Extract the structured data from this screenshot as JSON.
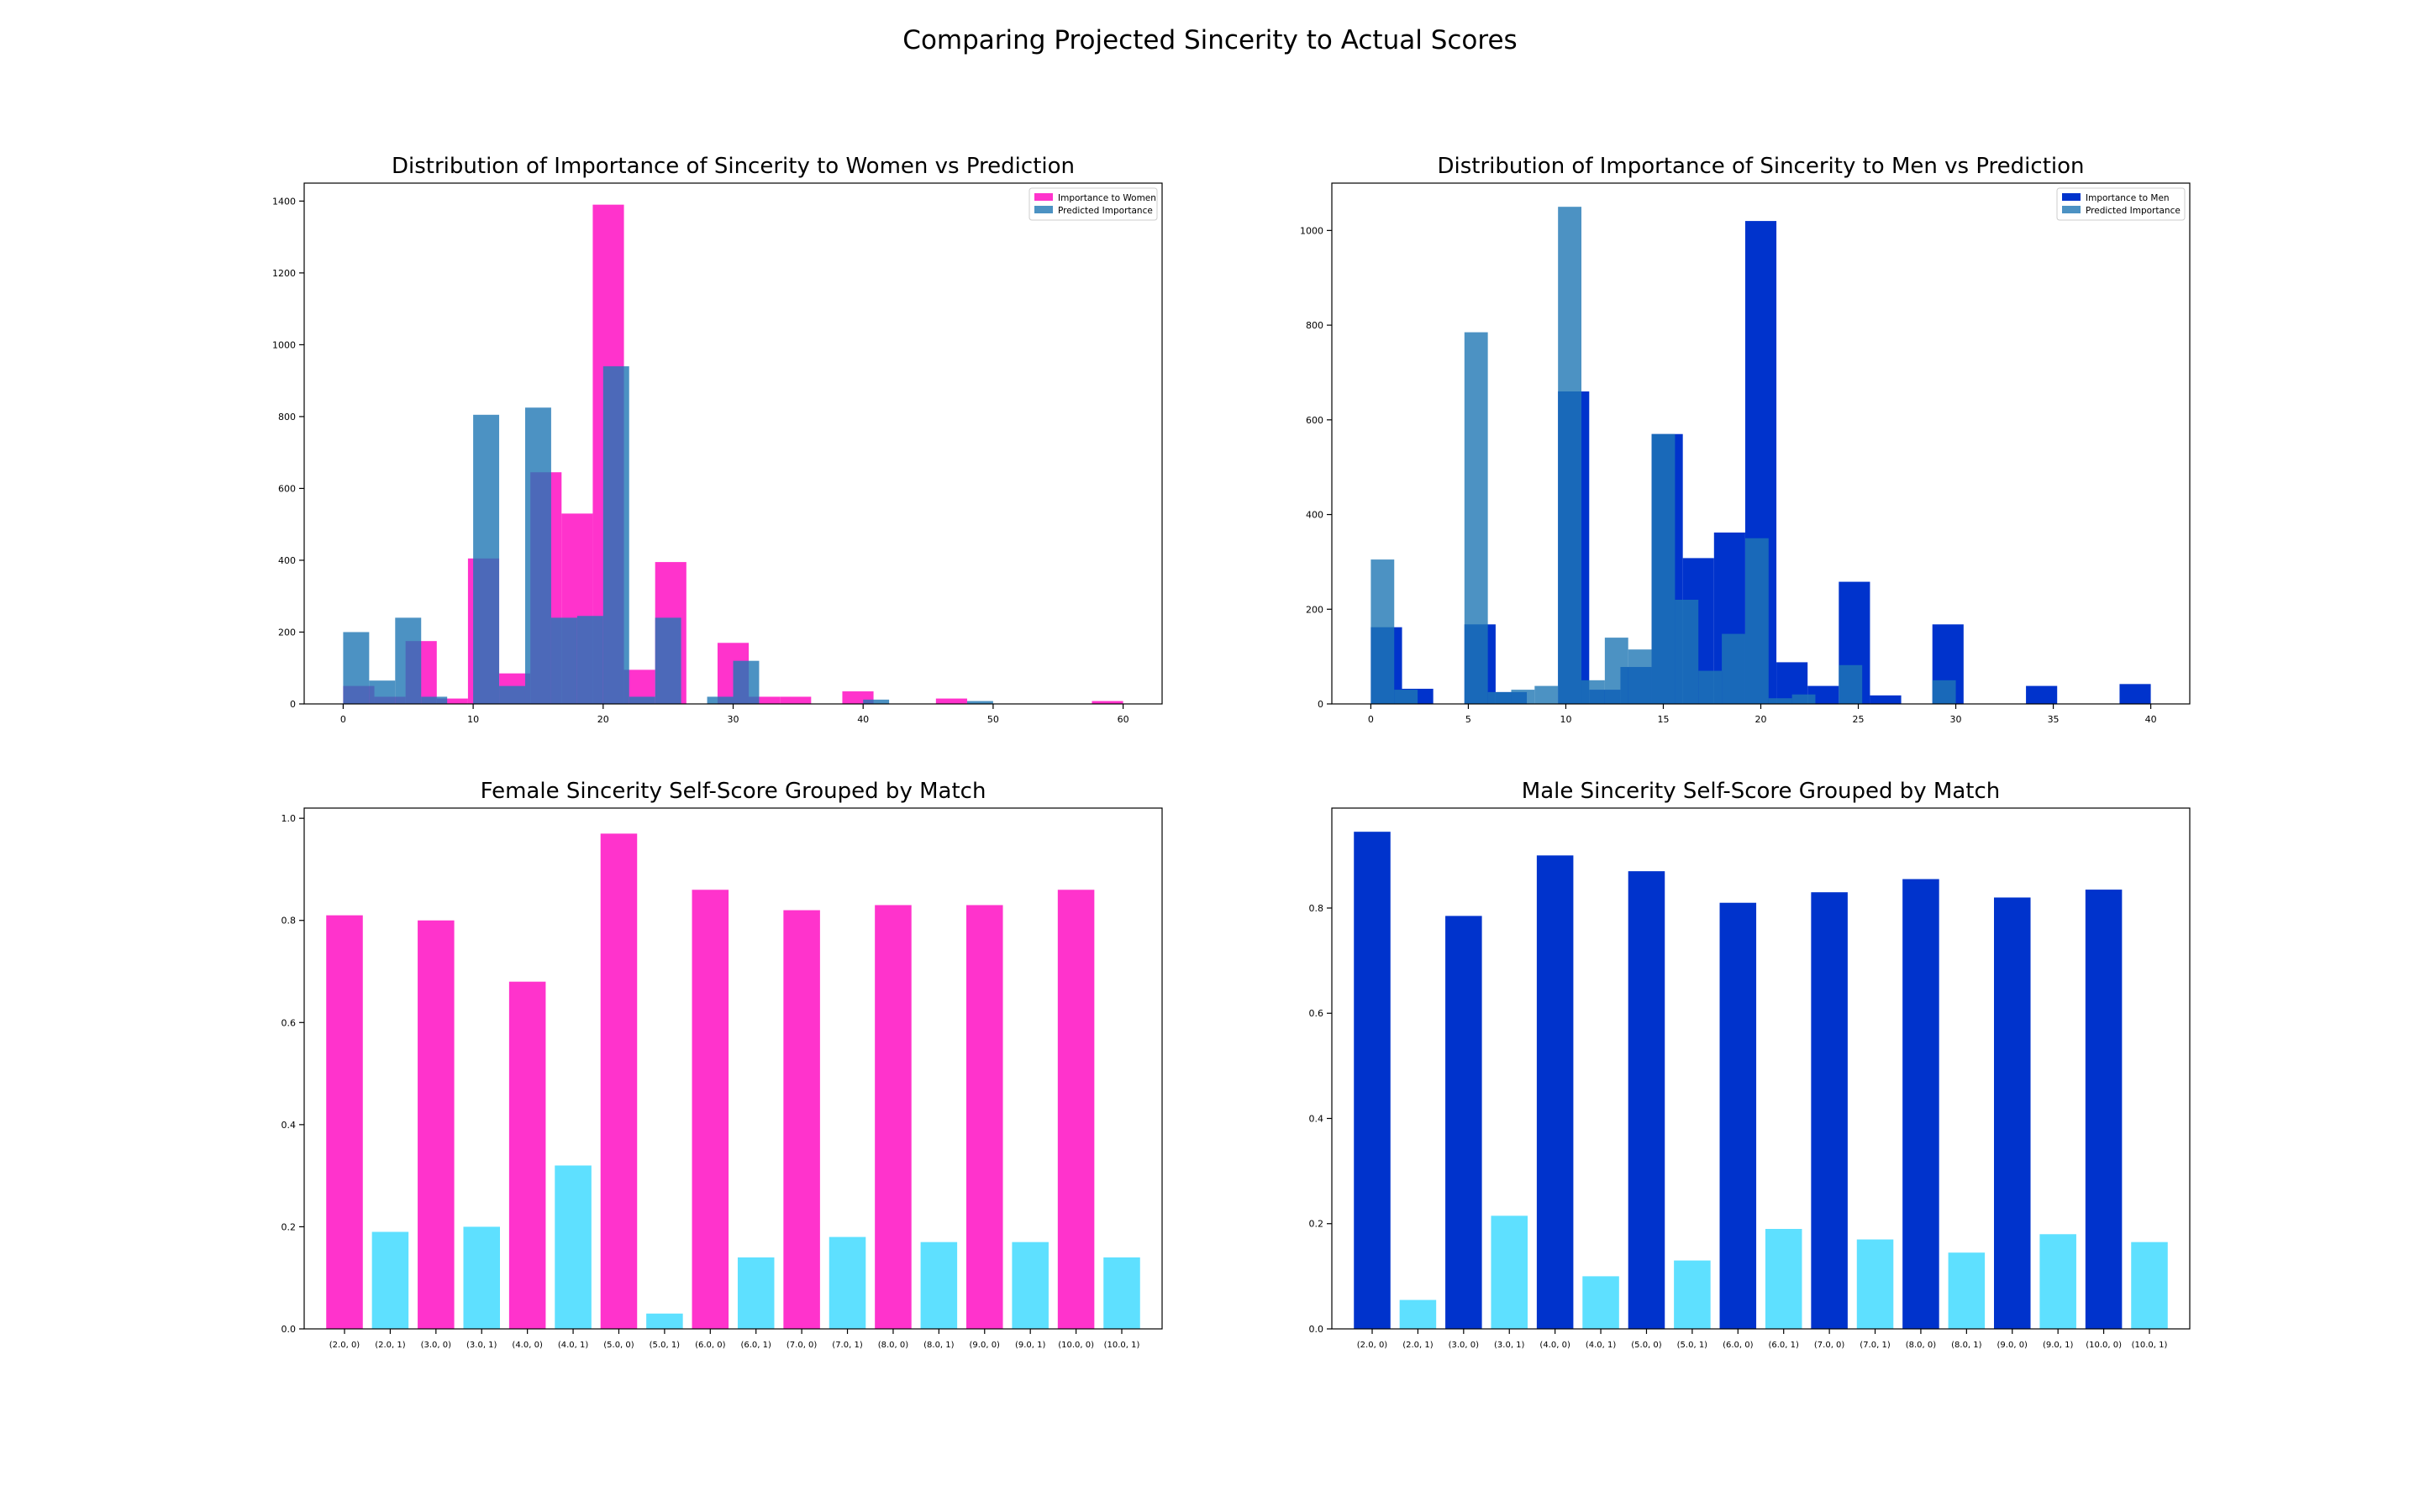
{
  "suptitle": "Comparing Projected Sincerity to Actual Scores",
  "colors": {
    "women": "#ff33cc",
    "men": "#0033cc",
    "predicted": "#1f77b4",
    "match_bar": "#5ee0ff"
  },
  "chart_data": [
    {
      "type": "bar",
      "title": "Distribution of Importance of Sincerity to Women vs Prediction",
      "xlim": [
        -3,
        63
      ],
      "ylim": [
        0,
        1450
      ],
      "xticks": [
        0,
        10,
        20,
        30,
        40,
        50,
        60
      ],
      "yticks": [
        0,
        200,
        400,
        600,
        800,
        1000,
        1200,
        1400
      ],
      "legend_position": "upper right",
      "series": [
        {
          "name": "Importance to Women",
          "color": "#ff33cc",
          "opacity": 1,
          "bins": [
            {
              "x0": 0,
              "x1": 2.4,
              "count": 50
            },
            {
              "x0": 2.4,
              "x1": 4.8,
              "count": 20
            },
            {
              "x0": 4.8,
              "x1": 7.2,
              "count": 175
            },
            {
              "x0": 7.2,
              "x1": 9.6,
              "count": 15
            },
            {
              "x0": 9.6,
              "x1": 12,
              "count": 405
            },
            {
              "x0": 12,
              "x1": 14.4,
              "count": 85
            },
            {
              "x0": 14.4,
              "x1": 16.8,
              "count": 645
            },
            {
              "x0": 16.8,
              "x1": 19.2,
              "count": 530
            },
            {
              "x0": 19.2,
              "x1": 21.6,
              "count": 1390
            },
            {
              "x0": 21.6,
              "x1": 24,
              "count": 95
            },
            {
              "x0": 24,
              "x1": 26.4,
              "count": 395
            },
            {
              "x0": 28.8,
              "x1": 31.2,
              "count": 170
            },
            {
              "x0": 31.2,
              "x1": 33.6,
              "count": 20
            },
            {
              "x0": 33.6,
              "x1": 36,
              "count": 20
            },
            {
              "x0": 38.4,
              "x1": 40.8,
              "count": 35
            },
            {
              "x0": 45.6,
              "x1": 48,
              "count": 15
            },
            {
              "x0": 57.6,
              "x1": 60,
              "count": 8
            }
          ]
        },
        {
          "name": "Predicted Importance",
          "color": "#1f77b4",
          "opacity": 0.8,
          "bins": [
            {
              "x0": 0,
              "x1": 2,
              "count": 200
            },
            {
              "x0": 2,
              "x1": 4,
              "count": 65
            },
            {
              "x0": 4,
              "x1": 6,
              "count": 240
            },
            {
              "x0": 6,
              "x1": 8,
              "count": 20
            },
            {
              "x0": 10,
              "x1": 12,
              "count": 805
            },
            {
              "x0": 12,
              "x1": 14,
              "count": 50
            },
            {
              "x0": 14,
              "x1": 16,
              "count": 825
            },
            {
              "x0": 16,
              "x1": 18,
              "count": 240
            },
            {
              "x0": 18,
              "x1": 20,
              "count": 245
            },
            {
              "x0": 20,
              "x1": 22,
              "count": 940
            },
            {
              "x0": 22,
              "x1": 24,
              "count": 20
            },
            {
              "x0": 24,
              "x1": 26,
              "count": 240
            },
            {
              "x0": 28,
              "x1": 30,
              "count": 20
            },
            {
              "x0": 30,
              "x1": 32,
              "count": 120
            },
            {
              "x0": 40,
              "x1": 42,
              "count": 12
            },
            {
              "x0": 48,
              "x1": 50,
              "count": 8
            }
          ]
        }
      ]
    },
    {
      "type": "bar",
      "title": "Distribution of Importance of Sincerity to Men vs Prediction",
      "xlim": [
        -2,
        42
      ],
      "ylim": [
        0,
        1100
      ],
      "xticks": [
        0,
        5,
        10,
        15,
        20,
        25,
        30,
        35,
        40
      ],
      "yticks": [
        0,
        200,
        400,
        600,
        800,
        1000
      ],
      "legend_position": "upper right",
      "series": [
        {
          "name": "Importance to Men",
          "color": "#0033cc",
          "opacity": 1,
          "bins": [
            {
              "x0": 0,
              "x1": 1.6,
              "count": 162
            },
            {
              "x0": 1.6,
              "x1": 3.2,
              "count": 32
            },
            {
              "x0": 4.8,
              "x1": 6.4,
              "count": 168
            },
            {
              "x0": 6.4,
              "x1": 8,
              "count": 25
            },
            {
              "x0": 9.6,
              "x1": 11.2,
              "count": 660
            },
            {
              "x0": 11.2,
              "x1": 12.8,
              "count": 30
            },
            {
              "x0": 12.8,
              "x1": 14.4,
              "count": 78
            },
            {
              "x0": 14.4,
              "x1": 16,
              "count": 570
            },
            {
              "x0": 16,
              "x1": 17.6,
              "count": 308
            },
            {
              "x0": 17.6,
              "x1": 19.2,
              "count": 362
            },
            {
              "x0": 19.2,
              "x1": 20.8,
              "count": 1020
            },
            {
              "x0": 20.8,
              "x1": 22.4,
              "count": 88
            },
            {
              "x0": 22.4,
              "x1": 24,
              "count": 38
            },
            {
              "x0": 24,
              "x1": 25.6,
              "count": 258
            },
            {
              "x0": 25.6,
              "x1": 27.2,
              "count": 18
            },
            {
              "x0": 28.8,
              "x1": 30.4,
              "count": 168
            },
            {
              "x0": 33.6,
              "x1": 35.2,
              "count": 38
            },
            {
              "x0": 38.4,
              "x1": 40,
              "count": 42
            }
          ]
        },
        {
          "name": "Predicted Importance",
          "color": "#1f77b4",
          "opacity": 0.8,
          "bins": [
            {
              "x0": 0,
              "x1": 1.2,
              "count": 305
            },
            {
              "x0": 1.2,
              "x1": 2.4,
              "count": 30
            },
            {
              "x0": 4.8,
              "x1": 6,
              "count": 785
            },
            {
              "x0": 6,
              "x1": 7.2,
              "count": 25
            },
            {
              "x0": 7.2,
              "x1": 8.4,
              "count": 30
            },
            {
              "x0": 8.4,
              "x1": 9.6,
              "count": 38
            },
            {
              "x0": 9.6,
              "x1": 10.8,
              "count": 1050
            },
            {
              "x0": 10.8,
              "x1": 12,
              "count": 50
            },
            {
              "x0": 12,
              "x1": 13.2,
              "count": 140
            },
            {
              "x0": 13.2,
              "x1": 14.4,
              "count": 115
            },
            {
              "x0": 14.4,
              "x1": 15.6,
              "count": 570
            },
            {
              "x0": 15.6,
              "x1": 16.8,
              "count": 220
            },
            {
              "x0": 16.8,
              "x1": 18,
              "count": 70
            },
            {
              "x0": 18,
              "x1": 19.2,
              "count": 148
            },
            {
              "x0": 19.2,
              "x1": 20.4,
              "count": 350
            },
            {
              "x0": 20.4,
              "x1": 21.6,
              "count": 12
            },
            {
              "x0": 21.6,
              "x1": 22.8,
              "count": 20
            },
            {
              "x0": 24,
              "x1": 25.2,
              "count": 82
            },
            {
              "x0": 28.8,
              "x1": 30,
              "count": 50
            }
          ]
        }
      ]
    },
    {
      "type": "bar",
      "title": "Female Sincerity Self-Score Grouped by Match",
      "ylim": [
        0,
        1.02
      ],
      "yticks": [
        0.0,
        0.2,
        0.4,
        0.6,
        0.8,
        1.0
      ],
      "categories": [
        "(2.0, 0)",
        "(2.0, 1)",
        "(3.0, 0)",
        "(3.0, 1)",
        "(4.0, 0)",
        "(4.0, 1)",
        "(5.0, 0)",
        "(5.0, 1)",
        "(6.0, 0)",
        "(6.0, 1)",
        "(7.0, 0)",
        "(7.0, 1)",
        "(8.0, 0)",
        "(8.0, 1)",
        "(9.0, 0)",
        "(9.0, 1)",
        "(10.0, 0)",
        "(10.0, 1)"
      ],
      "values": [
        0.81,
        0.19,
        0.8,
        0.2,
        0.68,
        0.32,
        0.97,
        0.03,
        0.86,
        0.14,
        0.82,
        0.18,
        0.83,
        0.17,
        0.83,
        0.17,
        0.86,
        0.14
      ],
      "bar_colors": [
        "#ff33cc",
        "#5ee0ff"
      ]
    },
    {
      "type": "bar",
      "title": "Male Sincerity Self-Score Grouped by Match",
      "ylim": [
        0,
        0.99
      ],
      "yticks": [
        0.0,
        0.2,
        0.4,
        0.6,
        0.8
      ],
      "categories": [
        "(2.0, 0)",
        "(2.0, 1)",
        "(3.0, 0)",
        "(3.0, 1)",
        "(4.0, 0)",
        "(4.0, 1)",
        "(5.0, 0)",
        "(5.0, 1)",
        "(6.0, 0)",
        "(6.0, 1)",
        "(7.0, 0)",
        "(7.0, 1)",
        "(8.0, 0)",
        "(8.0, 1)",
        "(9.0, 0)",
        "(9.0, 1)",
        "(10.0, 0)",
        "(10.0, 1)"
      ],
      "values": [
        0.945,
        0.055,
        0.785,
        0.215,
        0.9,
        0.1,
        0.87,
        0.13,
        0.81,
        0.19,
        0.83,
        0.17,
        0.855,
        0.145,
        0.82,
        0.18,
        0.835,
        0.165
      ],
      "bar_colors": [
        "#0033cc",
        "#5ee0ff"
      ]
    }
  ]
}
